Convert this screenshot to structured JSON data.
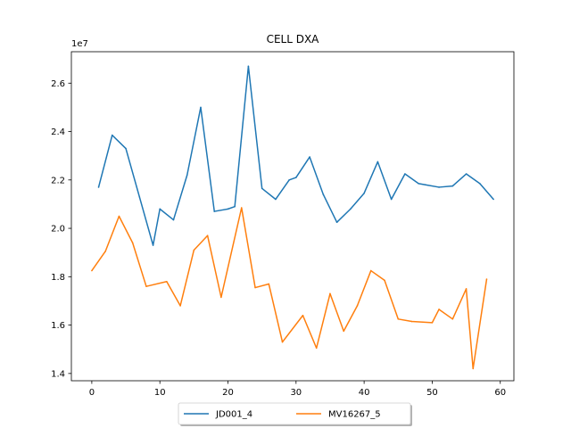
{
  "chart_data": {
    "type": "line",
    "title": "CELL DXA",
    "xlabel": "",
    "ylabel": "",
    "y_offset_label": "1e7",
    "xlim": [
      -3,
      62
    ],
    "ylim": [
      13700000,
      27300000
    ],
    "x_ticks": [
      0,
      10,
      20,
      30,
      40,
      50,
      60
    ],
    "y_ticks": [
      14000000,
      16000000,
      18000000,
      20000000,
      22000000,
      24000000,
      26000000
    ],
    "y_tick_labels": [
      "1.4",
      "1.6",
      "1.8",
      "2.0",
      "2.2",
      "2.4",
      "2.6"
    ],
    "grid": false,
    "legend_position": "bottom-center",
    "series": [
      {
        "name": "JD001_4",
        "color": "#1f77b4",
        "x": [
          1,
          3,
          5,
          7,
          9,
          10,
          12,
          14,
          16,
          18,
          20,
          21,
          23,
          25,
          27,
          29,
          30,
          32,
          34,
          36,
          38,
          40,
          42,
          44,
          46,
          48,
          49,
          51,
          53,
          55,
          57,
          59
        ],
        "y": [
          21700000,
          23850000,
          23300000,
          21300000,
          19300000,
          20800000,
          20350000,
          22200000,
          25000000,
          20700000,
          20800000,
          20900000,
          26700000,
          21650000,
          21200000,
          22000000,
          22100000,
          22950000,
          21400000,
          20250000,
          20800000,
          21450000,
          22750000,
          21200000,
          22250000,
          21850000,
          21800000,
          21700000,
          21750000,
          22250000,
          21850000,
          21200000
        ]
      },
      {
        "name": "MV16267_5",
        "color": "#ff7f0e",
        "x": [
          0,
          2,
          4,
          6,
          8,
          11,
          13,
          15,
          17,
          19,
          22,
          24,
          26,
          28,
          31,
          33,
          35,
          37,
          39,
          41,
          43,
          45,
          47,
          50,
          51,
          53,
          55,
          56,
          58
        ],
        "y": [
          18250000,
          19050000,
          20500000,
          19400000,
          17600000,
          17800000,
          16800000,
          19100000,
          19700000,
          17150000,
          20850000,
          17550000,
          17700000,
          15300000,
          16400000,
          15050000,
          17300000,
          15750000,
          16800000,
          18250000,
          17850000,
          16250000,
          16150000,
          16100000,
          16650000,
          16250000,
          17500000,
          14200000,
          17900000
        ]
      }
    ]
  }
}
